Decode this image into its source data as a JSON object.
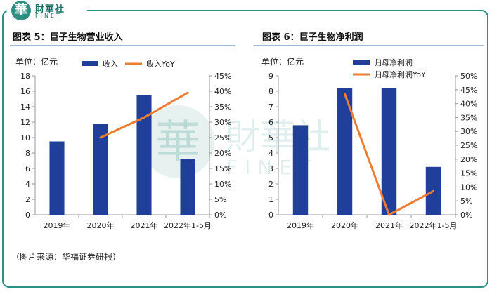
{
  "brand": {
    "seal": "華",
    "name_cn": "財華社",
    "name_en": "FINET"
  },
  "source": "（图片来源：华福证券研报）",
  "colors": {
    "bar": "#1f3f9a",
    "line": "#ed7d31",
    "frame": "#2e8f84",
    "axis": "#999999"
  },
  "chart_data": [
    {
      "type": "bar",
      "title": "图表 5：巨子生物营业收入",
      "unit_label": "单位：亿元",
      "categories": [
        "2019年",
        "2020年",
        "2021年",
        "2022年1-5月"
      ],
      "series": [
        {
          "name": "收入",
          "type": "bar",
          "axis": "left",
          "values": [
            9.5,
            11.8,
            15.5,
            7.2
          ]
        },
        {
          "name": "收入YoY",
          "type": "line",
          "axis": "right",
          "values": [
            null,
            25,
            31.5,
            39.5
          ]
        }
      ],
      "left_axis": {
        "min": 0,
        "max": 18,
        "ticks": [
          "0",
          "2",
          "4",
          "6",
          "8",
          "10",
          "12",
          "14",
          "16",
          "18"
        ]
      },
      "right_axis": {
        "min": 0,
        "max": 45,
        "ticks": [
          "0%",
          "5%",
          "10%",
          "15%",
          "20%",
          "25%",
          "30%",
          "35%",
          "40%",
          "45%"
        ]
      }
    },
    {
      "type": "bar",
      "title": "图表 6：巨子生物净利润",
      "unit_label": "单位：亿元",
      "categories": [
        "2019年",
        "2020年",
        "2021年",
        "2022年1-5月"
      ],
      "series": [
        {
          "name": "归母净利润",
          "type": "bar",
          "axis": "left",
          "values": [
            5.8,
            8.2,
            8.2,
            3.1
          ]
        },
        {
          "name": "归母净利润YoY",
          "type": "line",
          "axis": "right",
          "values": [
            null,
            43.5,
            0,
            8.5
          ]
        }
      ],
      "left_axis": {
        "min": 0,
        "max": 9,
        "ticks": [
          "0",
          "1",
          "2",
          "3",
          "4",
          "5",
          "6",
          "7",
          "8",
          "9"
        ]
      },
      "right_axis": {
        "min": 0,
        "max": 50,
        "ticks": [
          "0%",
          "5%",
          "10%",
          "15%",
          "20%",
          "25%",
          "30%",
          "35%",
          "40%",
          "45%",
          "50%"
        ]
      }
    }
  ]
}
